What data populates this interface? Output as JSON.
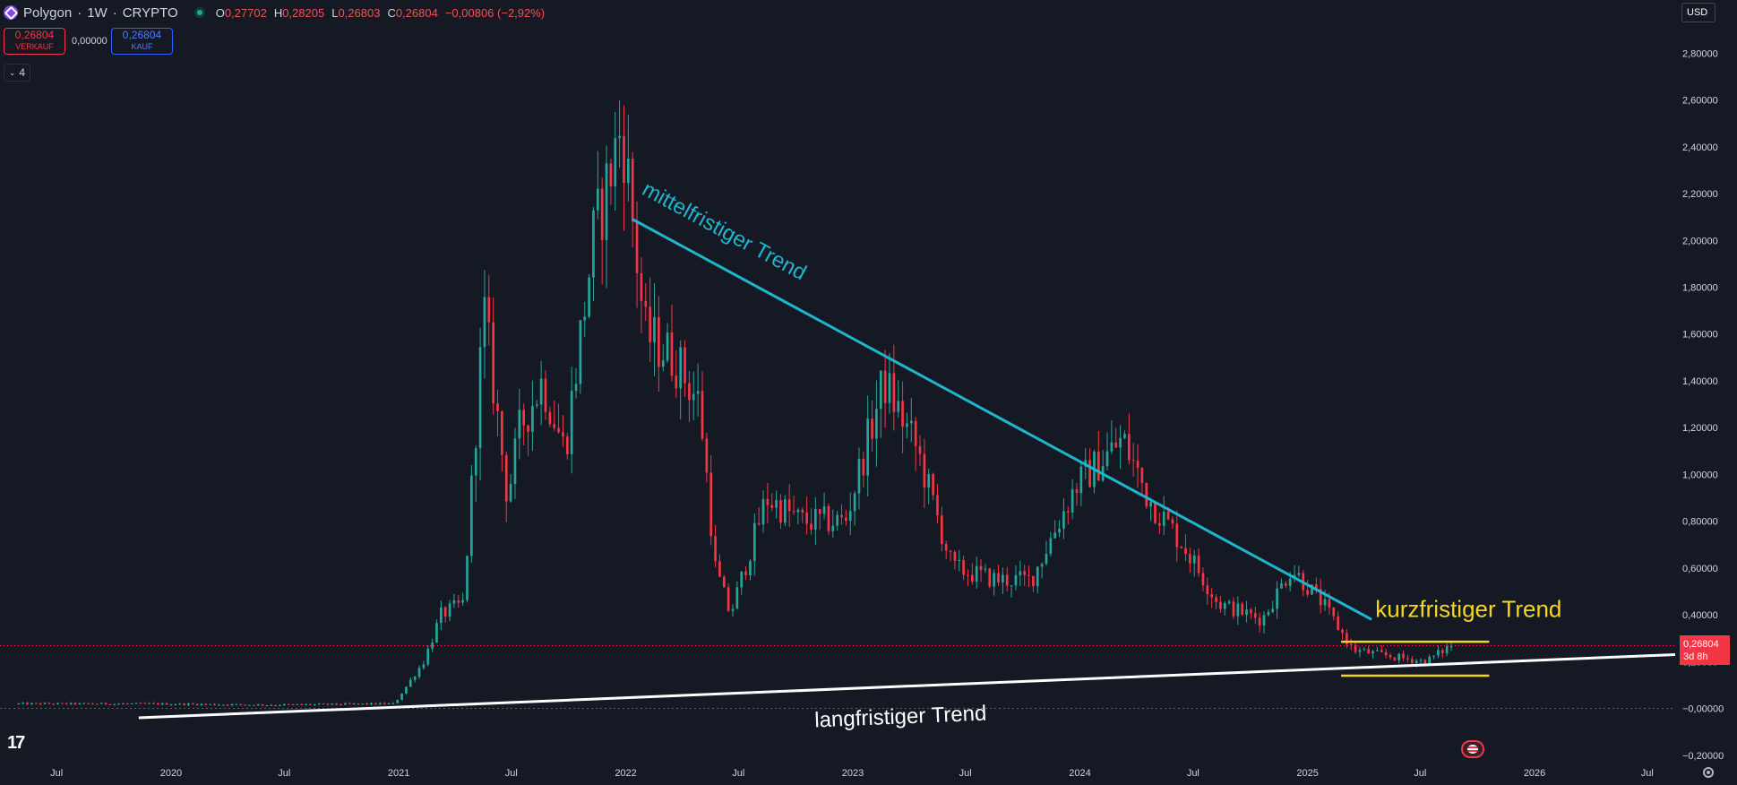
{
  "header": {
    "symbol": "Polygon",
    "interval": "1W",
    "exchange": "CRYPTO",
    "separator": "·",
    "ohlc": [
      {
        "key": "O",
        "value": "0,27702"
      },
      {
        "key": "H",
        "value": "0,28205"
      },
      {
        "key": "L",
        "value": "0,26803"
      },
      {
        "key": "C",
        "value": "0,26804"
      }
    ],
    "change": "−0,00806 (−2,92%)"
  },
  "trade": {
    "sell_price": "0,26804",
    "sell_label": "VERKAUF",
    "spread": "0,00000",
    "buy_price": "0,26804",
    "buy_label": "KAUF"
  },
  "indicators_collapse": {
    "count": "4"
  },
  "currency": "USD",
  "last_price": {
    "value": "0,26804",
    "countdown": "3d 8h"
  },
  "colors": {
    "up": "#26a69a",
    "down": "#f23645",
    "mid_trend": "#1fb5cc",
    "short_trend": "#f5d61b",
    "long_trend": "#ffffff"
  },
  "icons": {
    "logo": "polygon-logo-icon",
    "status": "market-status-icon",
    "tradingview": "tradingview-logo-icon",
    "settings": "settings-gear-icon",
    "flag": "us-flag-icon"
  },
  "tv_logo_text": "17",
  "chart_data": {
    "type": "candlestick",
    "title": "Polygon · 1W · CRYPTO",
    "y_axis": {
      "ticks": [
        -0.2,
        0,
        0.2,
        0.4,
        0.6,
        0.8,
        1.0,
        1.2,
        1.4,
        1.6,
        1.8,
        2.0,
        2.2,
        2.4,
        2.6,
        2.8
      ],
      "tick_labels": [
        "−0,20000",
        "−0,00000",
        "0,20000",
        "0,40000",
        "0,60000",
        "0,80000",
        "1,00000",
        "1,20000",
        "1,40000",
        "1,60000",
        "1,80000",
        "2,00000",
        "2,20000",
        "2,40000",
        "2,60000",
        "2,80000"
      ],
      "range": [
        -0.22,
        2.92
      ],
      "position": "right"
    },
    "x_axis": {
      "range": [
        "2019-04-01",
        "2026-08-15"
      ],
      "ticks": [
        {
          "date": "2019-07-01",
          "label": "Jul"
        },
        {
          "date": "2020-01-01",
          "label": "2020"
        },
        {
          "date": "2020-07-01",
          "label": "Jul"
        },
        {
          "date": "2021-01-01",
          "label": "2021"
        },
        {
          "date": "2021-07-01",
          "label": "Jul"
        },
        {
          "date": "2022-01-01",
          "label": "2022"
        },
        {
          "date": "2022-07-01",
          "label": "Jul"
        },
        {
          "date": "2023-01-01",
          "label": "2023"
        },
        {
          "date": "2023-07-01",
          "label": "Jul"
        },
        {
          "date": "2024-01-01",
          "label": "2024"
        },
        {
          "date": "2024-07-01",
          "label": "Jul"
        },
        {
          "date": "2025-01-01",
          "label": "2025"
        },
        {
          "date": "2025-07-01",
          "label": "Jul"
        },
        {
          "date": "2026-01-01",
          "label": "2026"
        },
        {
          "date": "2026-07-01",
          "label": "Jul"
        }
      ]
    },
    "price_path": [
      [
        "2019-05-01",
        0.02
      ],
      [
        "2019-11-15",
        0.02
      ],
      [
        "2020-06-01",
        0.015
      ],
      [
        "2020-12-25",
        0.02
      ],
      [
        "2021-02-10",
        0.2
      ],
      [
        "2021-03-10",
        0.4
      ],
      [
        "2021-04-15",
        0.45
      ],
      [
        "2021-05-18",
        1.7
      ],
      [
        "2021-06-25",
        0.9
      ],
      [
        "2021-07-15",
        1.2
      ],
      [
        "2021-08-20",
        1.4
      ],
      [
        "2021-09-25",
        1.1
      ],
      [
        "2021-11-10",
        2.0
      ],
      [
        "2021-12-26",
        2.5
      ],
      [
        "2022-02-01",
        1.6
      ],
      [
        "2022-03-20",
        1.5
      ],
      [
        "2022-04-30",
        1.3
      ],
      [
        "2022-05-25",
        0.6
      ],
      [
        "2022-06-18",
        0.4
      ],
      [
        "2022-08-15",
        0.9
      ],
      [
        "2022-10-10",
        0.8
      ],
      [
        "2022-12-20",
        0.8
      ],
      [
        "2023-02-20",
        1.4
      ],
      [
        "2023-04-15",
        1.1
      ],
      [
        "2023-06-10",
        0.6
      ],
      [
        "2023-08-20",
        0.55
      ],
      [
        "2023-10-15",
        0.55
      ],
      [
        "2023-12-25",
        0.95
      ],
      [
        "2024-03-10",
        1.15
      ],
      [
        "2024-04-20",
        0.9
      ],
      [
        "2024-06-15",
        0.7
      ],
      [
        "2024-08-10",
        0.45
      ],
      [
        "2024-10-20",
        0.38
      ],
      [
        "2024-12-06",
        0.6
      ],
      [
        "2025-01-25",
        0.45
      ],
      [
        "2025-03-15",
        0.25
      ],
      [
        "2025-05-20",
        0.22
      ],
      [
        "2025-07-10",
        0.2
      ],
      [
        "2025-08-20",
        0.27
      ]
    ],
    "drawings": [
      {
        "name": "mittelfristiger Trend",
        "start": [
          "2022-01-12",
          2.09
        ],
        "end": [
          "2025-04-14",
          0.38
        ]
      },
      {
        "name": "kurzfristiger Trend",
        "segments": [
          {
            "start": [
              "2025-02-24",
              0.285
            ],
            "end": [
              "2025-10-20",
              0.285
            ]
          },
          {
            "start": [
              "2025-02-24",
              0.14
            ],
            "end": [
              "2025-10-20",
              0.14
            ]
          }
        ]
      },
      {
        "name": "langfristiger Trend",
        "start": [
          "2019-11-10",
          -0.04
        ],
        "end": [
          "2026-08-15",
          0.23
        ]
      }
    ]
  }
}
